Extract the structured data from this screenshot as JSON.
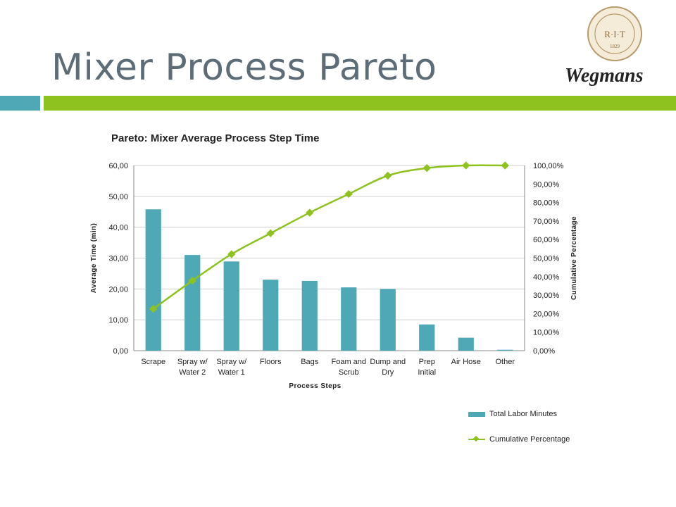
{
  "slide": {
    "title": "Mixer Process Pareto",
    "logo_seal_text": "R·I·T",
    "logo_seal_year": "1829",
    "logo_brand": "Wegmans"
  },
  "colors": {
    "bar": "#4ea8b6",
    "line": "#8dc21f",
    "title": "#5d6d78"
  },
  "chart_data": {
    "type": "bar",
    "title": "Pareto: Mixer Average Process Step Time",
    "xlabel": "Process Steps",
    "ylabel": "Average Time (min)",
    "y2label": "Cumulative Percentage",
    "categories": [
      [
        "Scrape"
      ],
      [
        "Spray w/",
        "Water 2"
      ],
      [
        "Spray w/",
        "Water 1"
      ],
      [
        "Floors"
      ],
      [
        "Bags"
      ],
      [
        "Foam and",
        "Scrub"
      ],
      [
        "Dump and",
        "Dry"
      ],
      [
        "Prep",
        "Initial"
      ],
      [
        "Air Hose"
      ],
      [
        "Other"
      ]
    ],
    "series": [
      {
        "name": "Total Labor Minutes",
        "type": "bar",
        "axis": "left",
        "values": [
          45.8,
          31.0,
          28.9,
          23.0,
          22.6,
          20.5,
          20.0,
          8.5,
          4.2,
          0.3
        ]
      },
      {
        "name": "Cumulative Percentage",
        "type": "line",
        "axis": "right",
        "values": [
          22.6,
          37.8,
          52.1,
          63.4,
          74.5,
          84.6,
          94.5,
          98.6,
          100.0,
          100.0
        ]
      }
    ],
    "ylim": [
      0,
      60
    ],
    "y2lim": [
      0,
      100
    ],
    "y_ticks": [
      "0,00",
      "10,00",
      "20,00",
      "30,00",
      "40,00",
      "50,00",
      "60,00"
    ],
    "y2_ticks": [
      "0,00%",
      "10,00%",
      "20,00%",
      "30,00%",
      "40,00%",
      "50,00%",
      "60,00%",
      "70,00%",
      "80,00%",
      "90,00%",
      "100,00%"
    ],
    "grid": true,
    "legend_position": "bottom-right"
  }
}
